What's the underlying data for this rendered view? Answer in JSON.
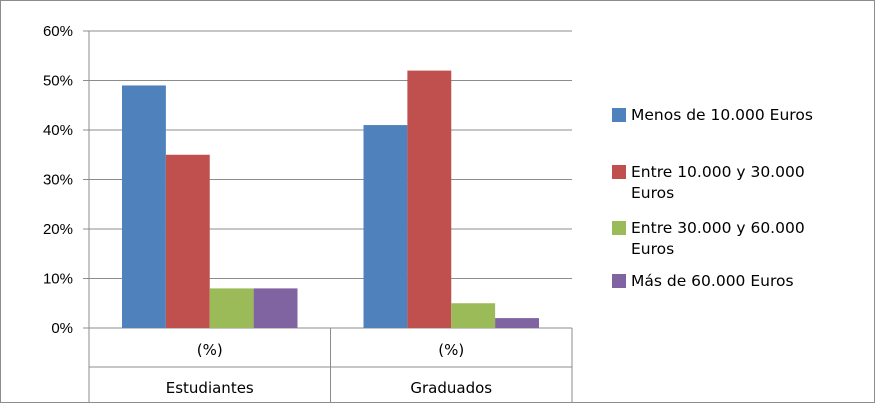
{
  "chart_data": {
    "type": "bar",
    "title": "",
    "xlabel": "",
    "ylabel": "",
    "ylim": [
      0,
      0.6
    ],
    "y_ticks": [
      "0%",
      "10%",
      "20%",
      "30%",
      "40%",
      "50%",
      "60%"
    ],
    "grid": true,
    "legend_position": "right",
    "categories": [
      {
        "label": "(%)",
        "group": "Estudiantes"
      },
      {
        "label": "(%)",
        "group": "Graduados"
      }
    ],
    "series": [
      {
        "name": "Menos de 10.000 Euros",
        "name_lines": [
          "Menos de 10.000 Euros"
        ],
        "color": "#4F81BD",
        "values": [
          0.49,
          0.41
        ]
      },
      {
        "name": "Entre 10.000 y 30.000 Euros",
        "name_lines": [
          "Entre 10.000 y 30.000",
          "Euros"
        ],
        "color": "#C0504D",
        "values": [
          0.35,
          0.52
        ]
      },
      {
        "name": "Entre 30.000 y 60.000 Euros",
        "name_lines": [
          "Entre 30.000 y 60.000",
          "Euros"
        ],
        "color": "#9BBB59",
        "values": [
          0.08,
          0.05
        ]
      },
      {
        "name": "Más de 60.000 Euros",
        "name_lines": [
          "Más de 60.000 Euros"
        ],
        "color": "#8064A2",
        "values": [
          0.08,
          0.02
        ]
      }
    ]
  }
}
